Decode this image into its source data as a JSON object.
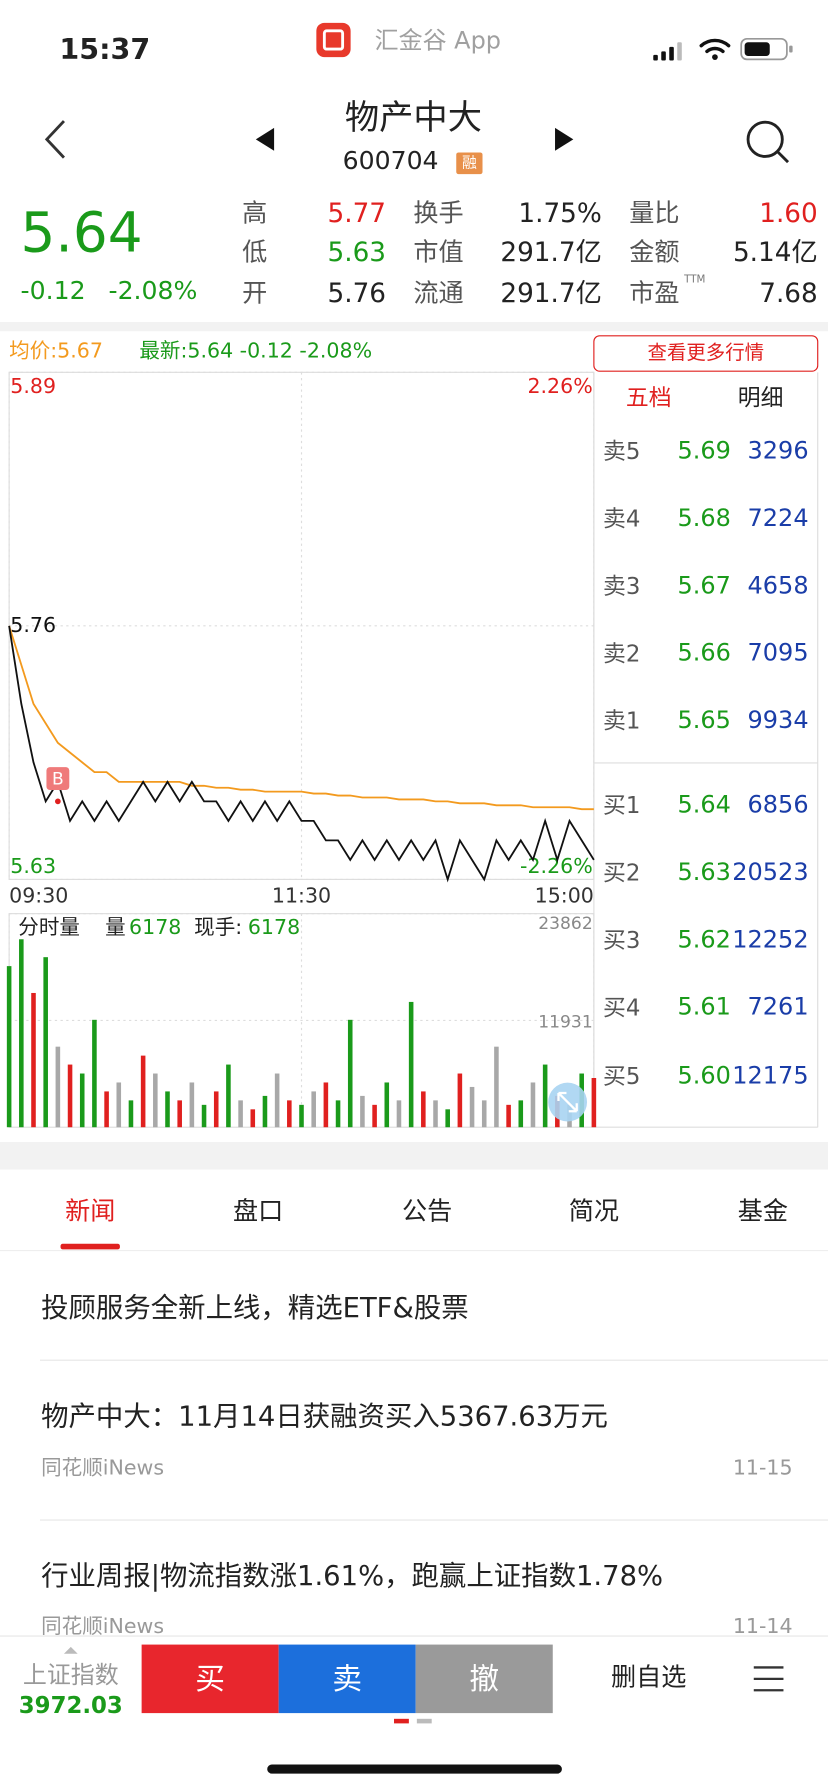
{
  "status_bar": {
    "time": "15:37",
    "app": "汇金谷 App"
  },
  "header": {
    "title": "物产中大",
    "code": "600704",
    "badge": "融"
  },
  "quote": {
    "price": "5.64",
    "change": "-0.12",
    "change_pct": "-2.08%",
    "stats": [
      [
        {
          "label": "高",
          "value": "5.77",
          "color": "#e0201f"
        },
        {
          "label": "换手",
          "value": "1.75%",
          "color": "#222222"
        },
        {
          "label": "量比",
          "value": "1.60",
          "color": "#e0201f"
        }
      ],
      [
        {
          "label": "低",
          "value": "5.63",
          "color": "#1a9a1a"
        },
        {
          "label": "市值",
          "value": "291.7亿",
          "color": "#222222"
        },
        {
          "label": "金额",
          "value": "5.14亿",
          "color": "#222222"
        }
      ],
      [
        {
          "label": "开",
          "value": "5.76",
          "color": "#222222"
        },
        {
          "label": "流通",
          "value": "291.7亿",
          "color": "#222222"
        },
        {
          "label": "市盈",
          "sup": "TTM",
          "value": "7.68",
          "color": "#222222"
        }
      ]
    ]
  },
  "chart_data": [
    {
      "type": "line",
      "latest_label": "最新:5.64  -0.12  -2.08%",
      "x": [
        0,
        5,
        10,
        15,
        20,
        25,
        30,
        35,
        40,
        45,
        50,
        55,
        60,
        65,
        70,
        75,
        80,
        85,
        90,
        95,
        100,
        105,
        110,
        115,
        120,
        125,
        130,
        135,
        140,
        145,
        150,
        155,
        160,
        165,
        170,
        175,
        180,
        185,
        190,
        195,
        200,
        205,
        210,
        215,
        220,
        225,
        230,
        235,
        240
      ],
      "xlim": [
        0,
        240
      ],
      "xticks": [
        {
          "value": 0,
          "label": "09:30"
        },
        {
          "value": 120,
          "label": "11:30"
        },
        {
          "value": 240,
          "label": "15:00"
        }
      ],
      "ylim": [
        5.63,
        5.89
      ],
      "yticks": [
        5.89,
        5.76,
        5.63
      ],
      "y2lim": [
        -2.26,
        2.26
      ],
      "y2ticks": [
        {
          "value": 2.26,
          "label": "2.26%"
        },
        {
          "value": -2.26,
          "label": "-2.26%"
        }
      ],
      "grid": true,
      "series": [
        {
          "color": "#111111",
          "values": [
            5.76,
            5.72,
            5.69,
            5.67,
            5.68,
            5.66,
            5.67,
            5.66,
            5.67,
            5.66,
            5.67,
            5.68,
            5.67,
            5.68,
            5.67,
            5.68,
            5.67,
            5.67,
            5.66,
            5.67,
            5.66,
            5.67,
            5.66,
            5.67,
            5.66,
            5.66,
            5.65,
            5.65,
            5.64,
            5.65,
            5.64,
            5.65,
            5.64,
            5.65,
            5.64,
            5.65,
            5.63,
            5.65,
            5.64,
            5.63,
            5.65,
            5.64,
            5.65,
            5.64,
            5.66,
            5.64,
            5.66,
            5.65,
            5.64
          ]
        },
        {
          "name": "均价:5.67",
          "color": "#f39a1e",
          "values": [
            5.76,
            5.74,
            5.72,
            5.71,
            5.7,
            5.695,
            5.69,
            5.685,
            5.685,
            5.68,
            5.68,
            5.68,
            5.68,
            5.68,
            5.68,
            5.678,
            5.678,
            5.677,
            5.677,
            5.676,
            5.676,
            5.675,
            5.675,
            5.675,
            5.675,
            5.674,
            5.674,
            5.673,
            5.673,
            5.672,
            5.672,
            5.672,
            5.671,
            5.671,
            5.671,
            5.67,
            5.67,
            5.669,
            5.669,
            5.669,
            5.668,
            5.668,
            5.668,
            5.667,
            5.667,
            5.667,
            5.667,
            5.666,
            5.666
          ]
        }
      ],
      "annotations": [
        {
          "text": "B",
          "x": 20,
          "y": 5.67
        }
      ]
    },
    {
      "type": "bar",
      "title": "分时量",
      "volume_label": "量",
      "volume": "6178",
      "current_label": "现手:",
      "current": "6178",
      "x": [
        0,
        5,
        10,
        15,
        20,
        25,
        30,
        35,
        40,
        45,
        50,
        55,
        60,
        65,
        70,
        75,
        80,
        85,
        90,
        95,
        100,
        105,
        110,
        115,
        120,
        125,
        130,
        135,
        140,
        145,
        150,
        155,
        160,
        165,
        170,
        175,
        180,
        185,
        190,
        195,
        200,
        205,
        210,
        215,
        220,
        225,
        230,
        235,
        240
      ],
      "xlim": [
        0,
        240
      ],
      "xticks": [
        0,
        120,
        240
      ],
      "values": [
        18000,
        21000,
        15000,
        19000,
        9000,
        7000,
        6000,
        12000,
        4000,
        5000,
        3000,
        8000,
        6000,
        4000,
        3000,
        5000,
        2500,
        4000,
        7000,
        3000,
        2000,
        3500,
        6000,
        3000,
        2500,
        4000,
        5000,
        3000,
        12000,
        3500,
        2500,
        5000,
        3000,
        14000,
        4000,
        3000,
        2000,
        6000,
        4500,
        3000,
        9000,
        2500,
        3000,
        5000,
        7000,
        3500,
        2500,
        6000,
        5500
      ],
      "colors": [
        "#1a9a1a",
        "#1a9a1a",
        "#e0201f",
        "#1a9a1a",
        "#a8a8a8",
        "#e0201f",
        "#1a9a1a",
        "#1a9a1a",
        "#e0201f",
        "#a8a8a8",
        "#1a9a1a",
        "#e0201f",
        "#a8a8a8",
        "#1a9a1a",
        "#e0201f",
        "#a8a8a8",
        "#1a9a1a",
        "#e0201f",
        "#1a9a1a",
        "#a8a8a8",
        "#e0201f",
        "#1a9a1a",
        "#a8a8a8",
        "#e0201f",
        "#1a9a1a",
        "#a8a8a8",
        "#e0201f",
        "#1a9a1a",
        "#1a9a1a",
        "#a8a8a8",
        "#e0201f",
        "#1a9a1a",
        "#a8a8a8",
        "#1a9a1a",
        "#e0201f",
        "#a8a8a8",
        "#1a9a1a",
        "#e0201f",
        "#a8a8a8",
        "#a8a8a8",
        "#a8a8a8",
        "#e0201f",
        "#1a9a1a",
        "#a8a8a8",
        "#1a9a1a",
        "#e0201f",
        "#a8a8a8",
        "#1a9a1a",
        "#e0201f"
      ],
      "ylim": [
        0,
        23862
      ],
      "yticks": [
        23862,
        11931
      ],
      "grid": true
    }
  ],
  "order_book": {
    "button": "查看更多行情",
    "tabs": [
      "五档",
      "明细"
    ],
    "asks": [
      {
        "label": "卖5",
        "price": "5.69",
        "volume": "3296"
      },
      {
        "label": "卖4",
        "price": "5.68",
        "volume": "7224"
      },
      {
        "label": "卖3",
        "price": "5.67",
        "volume": "4658"
      },
      {
        "label": "卖2",
        "price": "5.66",
        "volume": "7095"
      },
      {
        "label": "卖1",
        "price": "5.65",
        "volume": "9934"
      }
    ],
    "bids": [
      {
        "label": "买1",
        "price": "5.64",
        "volume": "6856"
      },
      {
        "label": "买2",
        "price": "5.63",
        "volume": "20523"
      },
      {
        "label": "买3",
        "price": "5.62",
        "volume": "12252"
      },
      {
        "label": "买4",
        "price": "5.61",
        "volume": "7261"
      },
      {
        "label": "买5",
        "price": "5.60",
        "volume": "12175"
      }
    ]
  },
  "news": {
    "tabs": [
      "新闻",
      "盘口",
      "公告",
      "简况",
      "基金"
    ],
    "items": [
      {
        "title": "投顾服务全新上线，精选ETF&股票"
      },
      {
        "title": "物产中大：11月14日获融资买入5367.63万元",
        "source": "同花顺iNews",
        "date": "11-15"
      },
      {
        "title": "行业周报|物流指数涨1.61%，跑赢上证指数1.78%",
        "source": "同花顺iNews",
        "date": "11-14"
      }
    ]
  },
  "bottom_bar": {
    "index_name": "上证指数",
    "index_value": "3972.03",
    "buy": "买",
    "sell": "卖",
    "cancel": "撤",
    "remove": "删自选"
  }
}
